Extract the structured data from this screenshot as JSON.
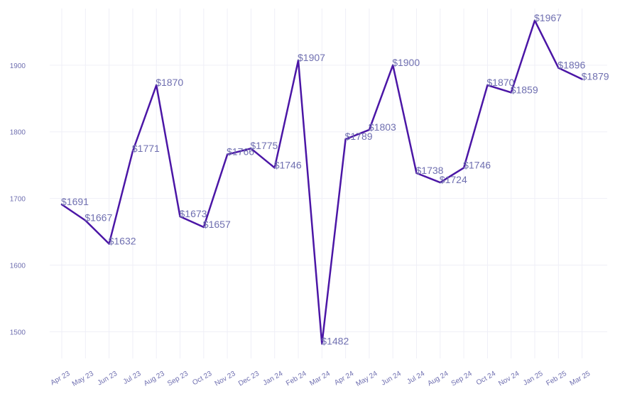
{
  "chart_data": {
    "type": "line",
    "title": "",
    "xlabel": "",
    "ylabel": "",
    "ylim": [
      1460,
      1985
    ],
    "yticks": [
      1500,
      1600,
      1700,
      1800,
      1900
    ],
    "categories": [
      "Apr 23",
      "May 23",
      "Jun 23",
      "Jul 23",
      "Aug 23",
      "Sep 23",
      "Oct 23",
      "Nov 23",
      "Dec 23",
      "Jan 24",
      "Feb 24",
      "Mar 24",
      "Apr 24",
      "May 24",
      "Jun 24",
      "Jul 24",
      "Aug 24",
      "Sep 24",
      "Oct 24",
      "Nov 24",
      "Jan 25",
      "Feb 25",
      "Mar 25"
    ],
    "values": [
      1691,
      1667,
      1632,
      1771,
      1870,
      1673,
      1657,
      1766,
      1775,
      1746,
      1907,
      1482,
      1789,
      1803,
      1900,
      1738,
      1724,
      1746,
      1870,
      1859,
      1967,
      1896,
      1879
    ],
    "labels": [
      "$1691",
      "$1667",
      "$1632",
      "$1771",
      "$1870",
      "$1673",
      "$1657",
      "$1766",
      "$1775",
      "$1746",
      "$1907",
      "$1482",
      "$1789",
      "$1803",
      "$1900",
      "$1738",
      "$1724",
      "$1746",
      "$1870",
      "$1859",
      "$1967",
      "$1896",
      "$1879"
    ],
    "grid": true,
    "colors": {
      "line": "#4b16a6",
      "text": "#6f6fb0",
      "grid": "#efeff7"
    }
  }
}
